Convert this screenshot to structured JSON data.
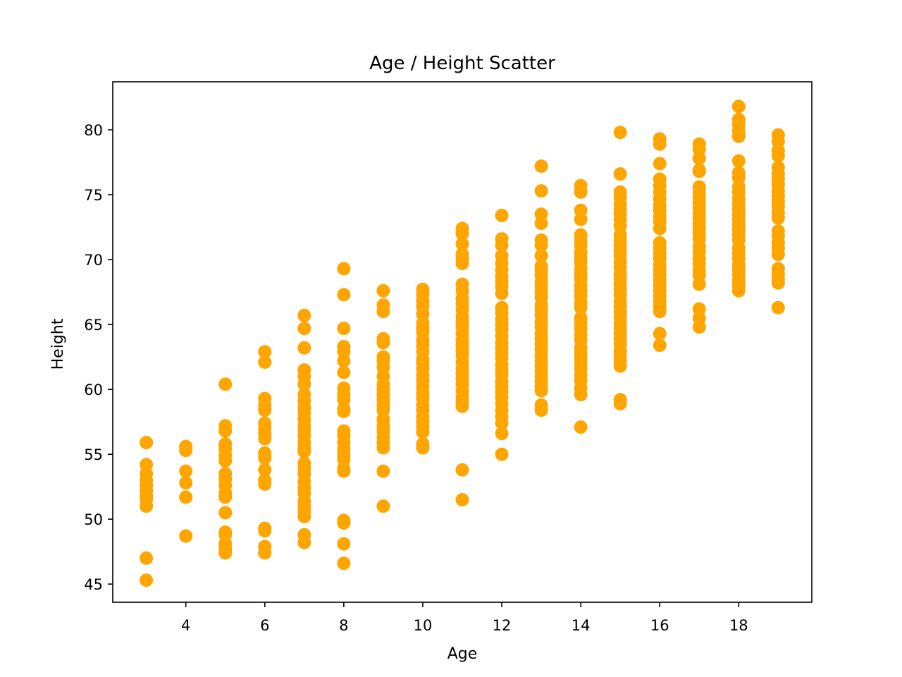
{
  "chart_data": {
    "type": "scatter",
    "title": "Age / Height Scatter",
    "xlabel": "Age",
    "ylabel": "Height",
    "xlim": [
      2.15,
      19.85
    ],
    "ylim": [
      43.6,
      83.7
    ],
    "xticks": [
      4,
      6,
      8,
      10,
      12,
      14,
      16,
      18
    ],
    "yticks": [
      45,
      50,
      55,
      60,
      65,
      70,
      75,
      80
    ],
    "xtick_labels": [
      "4",
      "6",
      "8",
      "10",
      "12",
      "14",
      "16",
      "18"
    ],
    "ytick_labels": [
      "45",
      "50",
      "55",
      "60",
      "65",
      "70",
      "75",
      "80"
    ],
    "grid": false,
    "marker_color": "#FFA500",
    "series": [
      {
        "points": [
          {
            "x": 3,
            "heights": [
              55.9,
              54.2,
              53.5,
              53.0,
              52.6,
              52.2,
              51.8,
              51.5,
              51.0,
              47.0,
              45.3
            ]
          },
          {
            "x": 4,
            "heights": [
              55.6,
              55.3,
              53.7,
              52.8,
              51.7,
              48.7
            ]
          },
          {
            "x": 5,
            "heights": [
              60.4,
              57.2,
              56.8,
              55.8,
              55.4,
              54.9,
              54.5,
              53.5,
              53.1,
              52.6,
              52.0,
              51.7,
              50.5,
              49.0,
              48.8,
              48.1,
              47.7,
              47.4
            ]
          },
          {
            "x": 6,
            "heights": [
              62.9,
              62.1,
              59.3,
              58.8,
              58.4,
              57.4,
              57.0,
              56.6,
              56.2,
              55.1,
              54.7,
              53.8,
              53.0,
              52.7,
              49.3,
              49.1,
              47.9,
              47.4
            ]
          },
          {
            "x": 7,
            "heights": [
              65.7,
              64.7,
              63.2,
              61.5,
              61.0,
              60.4,
              59.6,
              59.1,
              58.6,
              58.2,
              57.7,
              57.2,
              56.8,
              56.4,
              55.9,
              55.5,
              55.2,
              54.3,
              53.9,
              53.5,
              52.9,
              52.4,
              52.0,
              51.4,
              51.0,
              50.6,
              50.2,
              48.8,
              48.2
            ]
          },
          {
            "x": 8,
            "heights": [
              69.3,
              67.3,
              64.7,
              63.3,
              62.9,
              62.2,
              61.3,
              60.1,
              59.6,
              59.2,
              58.5,
              58.3,
              56.8,
              56.4,
              55.9,
              55.4,
              55.0,
              54.6,
              53.9,
              53.7,
              49.9,
              49.7,
              48.1,
              46.6
            ]
          },
          {
            "x": 9,
            "heights": [
              67.6,
              66.5,
              66.0,
              63.9,
              63.6,
              62.5,
              62.2,
              61.7,
              61.0,
              60.4,
              60.0,
              59.6,
              59.2,
              58.8,
              58.4,
              57.7,
              57.2,
              56.8,
              56.3,
              55.9,
              55.5,
              53.7,
              51.0
            ]
          },
          {
            "x": 10,
            "heights": [
              67.7,
              67.3,
              66.8,
              66.4,
              65.8,
              65.1,
              64.7,
              64.4,
              63.8,
              63.4,
              62.9,
              62.3,
              62.0,
              61.6,
              61.1,
              60.7,
              60.2,
              59.7,
              59.3,
              58.8,
              58.4,
              57.9,
              57.5,
              57.1,
              56.7,
              55.8,
              55.5
            ]
          },
          {
            "x": 11,
            "heights": [
              72.4,
              72.0,
              71.2,
              70.4,
              70.0,
              69.7,
              68.1,
              67.6,
              67.0,
              66.6,
              66.1,
              65.6,
              65.2,
              64.8,
              64.3,
              63.8,
              63.4,
              63.0,
              62.6,
              62.1,
              61.6,
              61.2,
              60.8,
              60.4,
              59.9,
              59.4,
              59.0,
              58.7,
              53.8,
              51.5
            ]
          },
          {
            "x": 12,
            "heights": [
              73.4,
              71.6,
              71.1,
              70.3,
              69.7,
              69.2,
              68.7,
              68.3,
              67.9,
              67.4,
              66.3,
              65.9,
              65.4,
              65.0,
              64.6,
              64.1,
              63.6,
              63.2,
              62.8,
              62.4,
              61.9,
              61.5,
              61.1,
              60.6,
              60.2,
              59.8,
              59.4,
              58.9,
              58.4,
              57.9,
              57.4,
              56.6,
              55.0
            ]
          },
          {
            "x": 13,
            "heights": [
              77.2,
              75.3,
              73.5,
              72.8,
              71.5,
              71.1,
              70.3,
              69.5,
              69.2,
              68.8,
              68.3,
              67.9,
              67.5,
              67.1,
              66.5,
              66.1,
              65.7,
              65.2,
              64.8,
              64.3,
              63.9,
              63.5,
              63.1,
              62.6,
              62.2,
              61.8,
              61.4,
              61.0,
              60.6,
              60.2,
              59.9,
              58.8,
              58.4
            ]
          },
          {
            "x": 14,
            "heights": [
              75.7,
              75.2,
              73.8,
              73.1,
              71.9,
              71.5,
              71.1,
              70.6,
              70.2,
              69.8,
              69.3,
              68.9,
              68.5,
              68.0,
              67.6,
              67.2,
              66.7,
              66.3,
              65.5,
              65.1,
              64.7,
              64.2,
              63.8,
              63.2,
              62.8,
              62.4,
              62.0,
              61.6,
              61.1,
              60.7,
              60.1,
              59.6,
              57.1
            ]
          },
          {
            "x": 15,
            "heights": [
              79.8,
              76.6,
              75.2,
              74.8,
              74.3,
              73.9,
              73.5,
              73.1,
              72.6,
              71.9,
              71.5,
              71.1,
              70.7,
              70.3,
              69.8,
              69.4,
              68.9,
              68.5,
              68.1,
              67.7,
              67.3,
              66.8,
              66.4,
              66.0,
              65.6,
              65.1,
              64.7,
              64.3,
              63.9,
              63.5,
              63.0,
              62.6,
              62.2,
              61.8,
              59.2,
              58.9
            ]
          },
          {
            "x": 16,
            "heights": [
              79.3,
              78.9,
              77.4,
              76.2,
              75.7,
              75.2,
              74.7,
              74.2,
              73.8,
              73.3,
              72.9,
              72.4,
              71.3,
              70.9,
              70.5,
              70.1,
              69.6,
              69.2,
              68.8,
              68.4,
              68.0,
              67.6,
              67.2,
              66.8,
              66.4,
              66.0,
              64.3,
              63.4
            ]
          },
          {
            "x": 17,
            "heights": [
              78.9,
              78.5,
              77.8,
              76.9,
              76.8,
              75.6,
              75.2,
              74.8,
              74.4,
              74.0,
              73.6,
              73.2,
              72.8,
              72.4,
              72.0,
              71.6,
              71.0,
              70.6,
              70.1,
              69.7,
              69.2,
              68.8,
              68.1,
              66.2,
              65.5,
              64.8
            ]
          },
          {
            "x": 18,
            "heights": [
              81.8,
              80.8,
              80.4,
              79.9,
              79.5,
              77.6,
              76.7,
              76.3,
              75.6,
              75.2,
              74.7,
              74.3,
              73.9,
              73.5,
              73.1,
              72.7,
              72.3,
              71.9,
              71.5,
              70.9,
              70.5,
              70.1,
              69.6,
              69.2,
              68.8,
              68.4,
              68.0,
              67.6
            ]
          },
          {
            "x": 19,
            "heights": [
              79.6,
              79.1,
              78.4,
              78.0,
              77.1,
              76.6,
              76.2,
              75.8,
              75.3,
              74.9,
              74.5,
              74.1,
              73.6,
              73.2,
              72.2,
              71.8,
              71.3,
              70.9,
              70.4,
              69.3,
              68.9,
              68.5,
              68.2,
              66.3
            ]
          }
        ]
      }
    ]
  }
}
